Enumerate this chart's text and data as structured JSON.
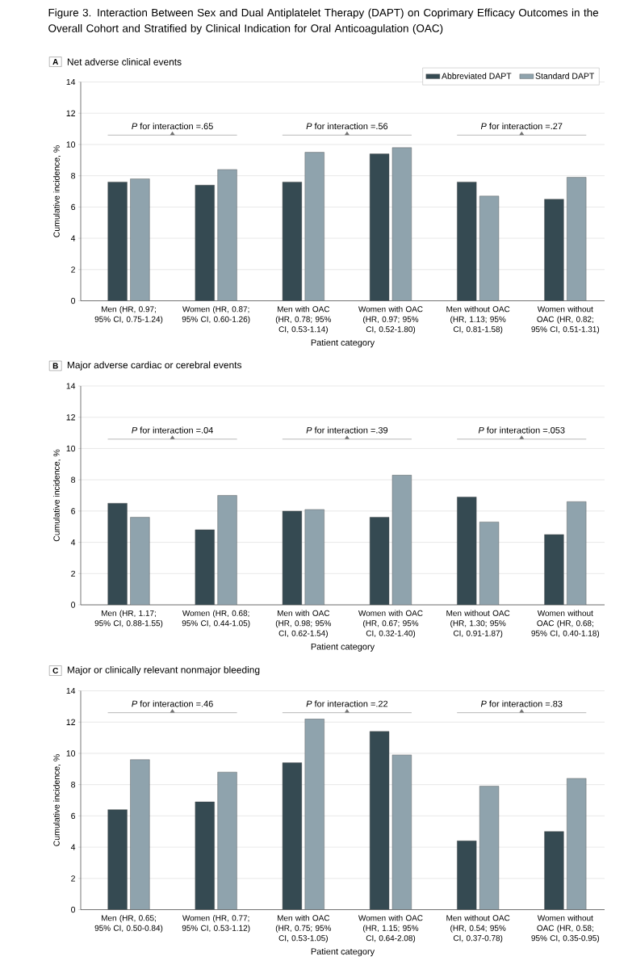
{
  "chart_data": [
    {
      "type": "bar",
      "title": "Figure 3. Interaction Between Sex and Dual Antiplatelet Therapy (DAPT) on Coprimary Efficacy Outcomes in the Overall Cohort and Stratified by Clinical Indication for Oral Anticoagulation (OAC)",
      "subtitle": "Net adverse clinical events",
      "xlabel": "Patient category",
      "ylabel": "Cumulative incidence, %",
      "categories": [
        "Men (HR, 0.97; 95% CI, 0.75-1.24)",
        "Women (HR, 0.87; 95% CI, 0.60-1.26)",
        "Men with OAC (HR, 0.78; 95% CI, 0.53-1.14)",
        "Women with OAC (HR, 0.97; 95% CI, 0.52-1.80)",
        "Men without OAC (HR, 1.13; 95% CI, 0.81-1.58)",
        "Women without OAC (HR, 0.82; 95% CI, 0.51-1.31)"
      ],
      "series": [
        {
          "name": "Abbreviated DAPT",
          "color": "#354a52",
          "values": [
            7.6,
            7.4,
            7.6,
            9.4,
            7.6,
            6.5
          ]
        },
        {
          "name": "Standard DAPT",
          "color": "#8fa3ad",
          "values": [
            7.8,
            8.4,
            9.5,
            9.8,
            6.7,
            7.9
          ]
        }
      ],
      "ylim": [
        0,
        14
      ],
      "yticks": [
        0,
        2,
        4,
        6,
        8,
        10,
        12,
        14
      ],
      "grid": "y",
      "legend": "top right",
      "annotations": [
        "A",
        "*P* for interaction =.65",
        "*P* for interaction =.56",
        "*P* for interaction =.27"
      ]
    },
    {
      "type": "bar",
      "title": "Major adverse cardiac or cerebral events",
      "xlabel": "Patient category",
      "ylabel": "Cumulative incidence, %",
      "categories": [
        "Men (HR, 1.17; 95% CI, 0.88-1.55)",
        "Women (HR, 0.68; 95% CI, 0.44-1.05)",
        "Men with OAC (HR, 0.98; 95% CI, 0.62-1.54)",
        "Women with OAC (HR, 0.67; 95% CI, 0.32-1.40)",
        "Men without OAC (HR, 1.30; 95% CI, 0.91-1.87)",
        "Women without OAC (HR, 0.68; 95% CI, 0.40-1.18)"
      ],
      "series": [
        {
          "color": "#354a52",
          "values": [
            6.5,
            4.8,
            6.0,
            5.6,
            6.9,
            4.5
          ]
        },
        {
          "color": "#8fa3ad",
          "values": [
            5.6,
            7.0,
            6.1,
            8.3,
            5.3,
            6.6
          ]
        }
      ],
      "ylim": [
        0,
        14
      ],
      "yticks": [
        0,
        2,
        4,
        6,
        8,
        10,
        12,
        14
      ],
      "grid": "y",
      "annotations": [
        "B",
        "*P* for interaction =.04",
        "*P* for interaction =.39",
        "*P* for interaction =.053"
      ]
    },
    {
      "type": "bar",
      "title": "Major or clinically relevant nonmajor bleeding",
      "xlabel": "Patient category",
      "ylabel": "Cumulative incidence, %",
      "categories": [
        "Men (HR, 0.65; 95% CI, 0.50-0.84)",
        "Women (HR, 0.77; 95% CI, 0.53-1.12)",
        "Men with OAC (HR, 0.75; 95% CI, 0.53-1.05)",
        "Women with OAC (HR, 1.15; 95% CI, 0.64-2.08)",
        "Men without OAC (HR, 0.54; 95% CI, 0.37-0.78)",
        "Women without OAC (HR, 0.58; 95% CI, 0.35-0.95)"
      ],
      "series": [
        {
          "color": "#354a52",
          "values": [
            6.4,
            6.9,
            9.4,
            11.4,
            4.4,
            5.0
          ]
        },
        {
          "color": "#8fa3ad",
          "values": [
            9.6,
            8.8,
            12.2,
            9.9,
            7.9,
            8.4
          ]
        }
      ],
      "ylim": [
        0,
        14
      ],
      "yticks": [
        0,
        2,
        4,
        6,
        8,
        10,
        12,
        14
      ],
      "grid": "y",
      "annotations": [
        "C",
        "*P* for interaction =.46",
        "*P* for interaction =.22",
        "*P* for interaction =.83"
      ]
    }
  ]
}
